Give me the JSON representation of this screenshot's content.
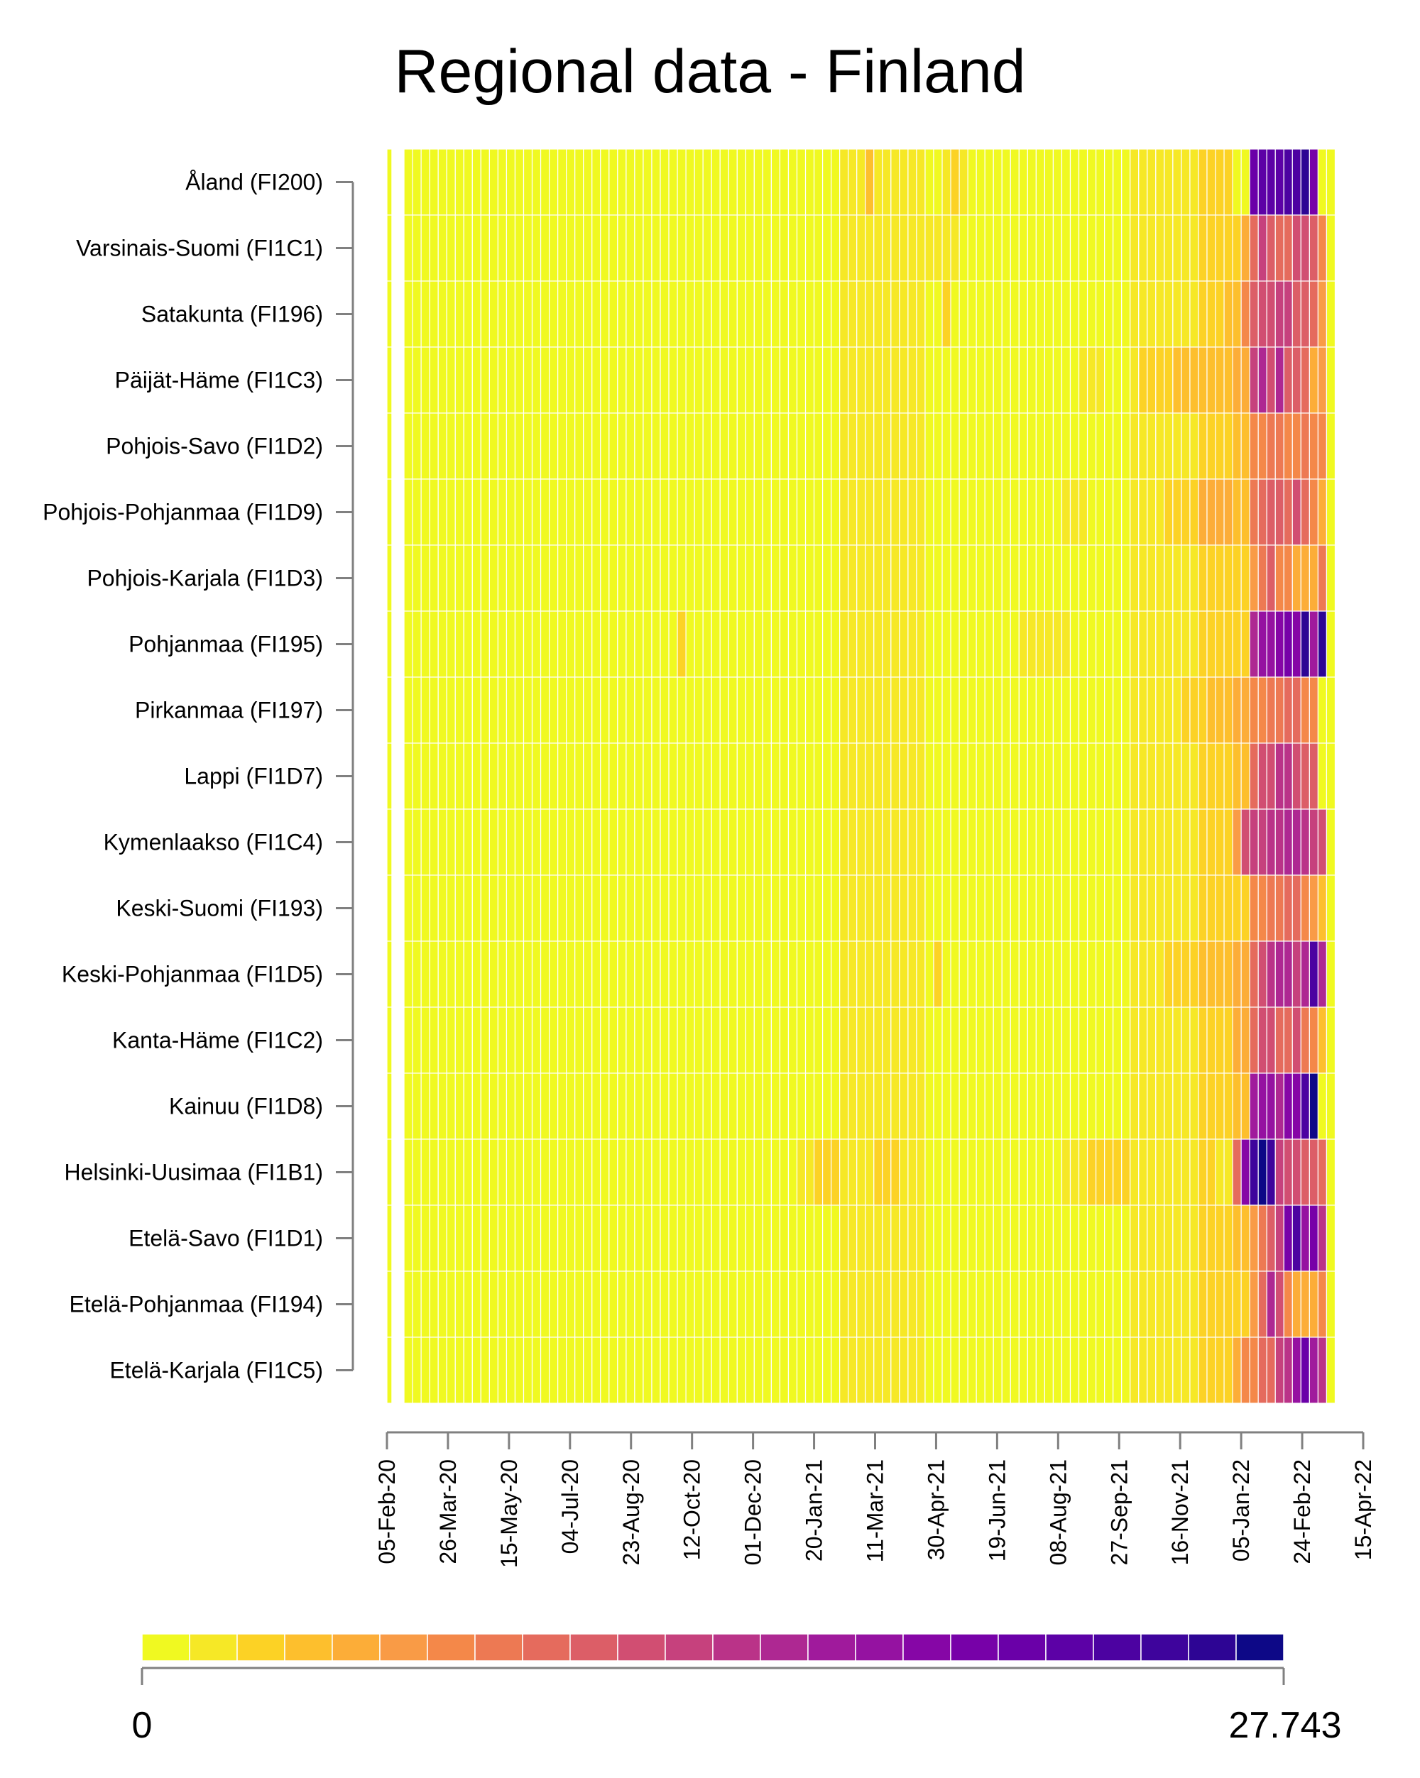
{
  "chart_data": {
    "type": "heatmap",
    "title": "Regional data - Finland",
    "x_ticks": [
      "05-Feb-20",
      "26-Mar-20",
      "15-May-20",
      "04-Jul-20",
      "23-Aug-20",
      "12-Oct-20",
      "01-Dec-20",
      "20-Jan-21",
      "11-Mar-21",
      "30-Apr-21",
      "19-Jun-21",
      "08-Aug-21",
      "27-Sep-21",
      "16-Nov-21",
      "05-Jan-22",
      "24-Feb-22",
      "15-Apr-22"
    ],
    "x_range": [
      "2020-02-05",
      "2022-04-15"
    ],
    "regions": [
      "Åland (FI200)",
      "Varsinais-Suomi (FI1C1)",
      "Satakunta (FI196)",
      "Päijät-Häme (FI1C3)",
      "Pohjois-Savo (FI1D2)",
      "Pohjois-Pohjanmaa (FI1D9)",
      "Pohjois-Karjala (FI1D3)",
      "Pohjanmaa (FI195)",
      "Pirkanmaa (FI197)",
      "Lappi (FI1D7)",
      "Kymenlaakso (FI1C4)",
      "Keski-Suomi (FI193)",
      "Keski-Pohjanmaa (FI1D5)",
      "Kanta-Häme (FI1C2)",
      "Kainuu (FI1D8)",
      "Helsinki-Uusimaa (FI1B1)",
      "Etelä-Savo (FI1D1)",
      "Etelä-Pohjanmaa (FI194)",
      "Etelä-Karjala (FI1C5)"
    ],
    "color_scale": {
      "min_label": "0",
      "max_label": "27.743",
      "min": 0,
      "max": 27.743,
      "colors": [
        "#f0f921",
        "#f6e826",
        "#fcd225",
        "#fdbf2d",
        "#fcad38",
        "#f99b46",
        "#f48849",
        "#ed7953",
        "#e56b5d",
        "#dc5e67",
        "#d14e72",
        "#c6417d",
        "#ba3388",
        "#ae2892",
        "#a01a9c",
        "#9512a1",
        "#8606a6",
        "#7701a8",
        "#6a00a8",
        "#5c01a6",
        "#4c02a1",
        "#3e049c",
        "#2d0594",
        "#0d0887"
      ]
    },
    "annotations": [
      "Near-zero values across all regions from Feb 2020 to Nov 2021, with small rises in Nov 2020 to Mar 2021 and Aug to Nov 2021",
      "Sharp increase in all regions from about Dec 2021 to Mar 2022",
      "Highest values about Dec 2021 to Jan 2022 in Åland and Helsinki-Uusimaa; Feb to Mar 2022 in Pohjanmaa, Kainuu and Etelä-Savo"
    ]
  }
}
